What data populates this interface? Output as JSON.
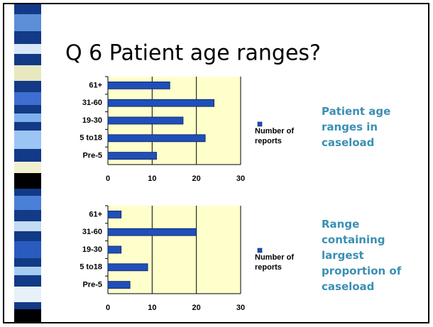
{
  "title": "Q 6 Patient age ranges?",
  "chart_data": [
    {
      "type": "bar",
      "orientation": "horizontal",
      "categories": [
        "61+",
        "31-60",
        "19-30",
        "5 to18",
        "Pre-5"
      ],
      "series": [
        {
          "name": "Number of reports",
          "color": "#1f4fb8",
          "values": [
            14,
            24,
            17,
            22,
            11
          ]
        }
      ],
      "xlim": [
        0,
        30
      ],
      "xticks": [
        0,
        10,
        20,
        30
      ],
      "grid": true,
      "legend": "right",
      "annotation": "Patient age ranges in caseload"
    },
    {
      "type": "bar",
      "orientation": "horizontal",
      "categories": [
        "61+",
        "31-60",
        "19-30",
        "5 to18",
        "Pre-5"
      ],
      "series": [
        {
          "name": "Number of reports",
          "color": "#1f4fb8",
          "values": [
            3,
            20,
            3,
            9,
            5
          ]
        }
      ],
      "xlim": [
        0,
        30
      ],
      "xticks": [
        0,
        10,
        20,
        30
      ],
      "grid": true,
      "legend": "right",
      "annotation": "Range containing largest proportion of caseload"
    }
  ]
}
